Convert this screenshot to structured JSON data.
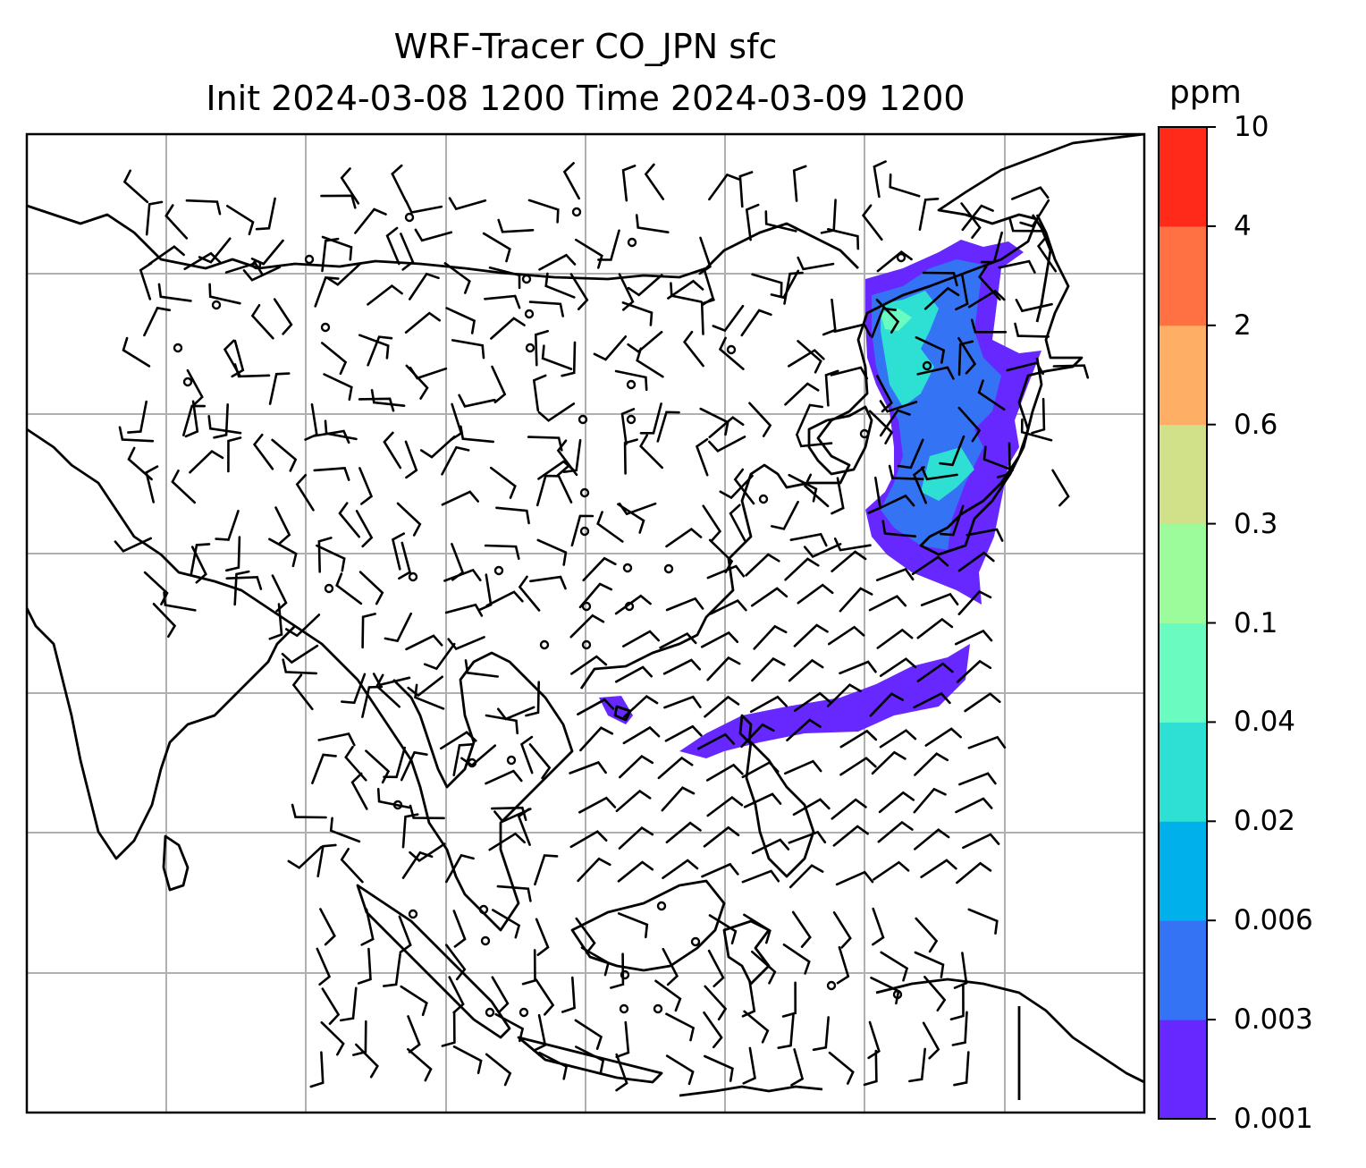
{
  "figure": {
    "title_line1": "WRF-Tracer CO_JPN sfc",
    "title_line2": "Init 2024-03-08 1200 Time 2024-03-09 1200"
  },
  "colorbar": {
    "unit": "ppm",
    "levels": [
      "0.001",
      "0.003",
      "0.006",
      "0.02",
      "0.04",
      "0.1",
      "0.3",
      "0.6",
      "2",
      "4",
      "10"
    ],
    "colors": [
      "#6628ff",
      "#3473f4",
      "#00b0ea",
      "#2ee0d4",
      "#6afbc0",
      "#9cfb9b",
      "#d1e189",
      "#ffae66",
      "#ff7043",
      "#ff2a19"
    ]
  },
  "map": {
    "gridlines": true,
    "coastline_color": "#000000",
    "grid_color": "#b0b0b0",
    "tracer_plume_color": "#6628ff",
    "wind_barb_color": "#000000"
  }
}
